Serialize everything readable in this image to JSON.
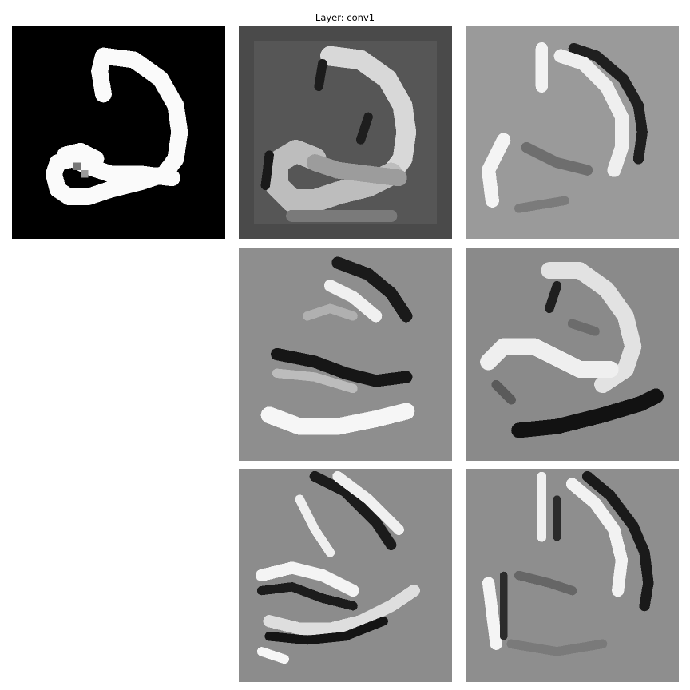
{
  "figure": {
    "title": "Layer: conv1"
  },
  "panels": [
    {
      "name": "input-image",
      "background": "#000000"
    },
    {
      "name": "feature-map-1",
      "background": "#4a4a4a"
    },
    {
      "name": "feature-map-2",
      "background": "#9a9a9a"
    },
    {
      "name": "feature-map-3",
      "background": "#8e8e8e"
    },
    {
      "name": "feature-map-4",
      "background": "#8a8a8a"
    },
    {
      "name": "feature-map-5",
      "background": "#8c8c8c"
    },
    {
      "name": "feature-map-6",
      "background": "#8e8e8e"
    }
  ]
}
